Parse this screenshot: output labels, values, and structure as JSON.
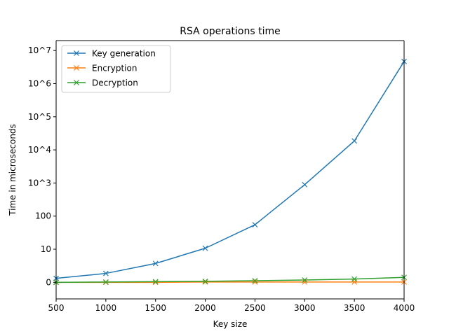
{
  "chart_data": {
    "type": "line",
    "title": "RSA operations time",
    "xlabel": "Key size",
    "ylabel": "Time in microseconds",
    "x": [
      500,
      1000,
      1500,
      2000,
      2500,
      3000,
      3500,
      4000
    ],
    "xlim": [
      500,
      4000
    ],
    "x_ticks": [
      500,
      1000,
      1500,
      2000,
      2500,
      3000,
      3500,
      4000
    ],
    "y_scale": "symlog",
    "ylim": [
      -0.5,
      7.3
    ],
    "y_ticks": [
      {
        "value": 0,
        "label": "0"
      },
      {
        "value": 1,
        "label": "10"
      },
      {
        "value": 2,
        "label": "100"
      },
      {
        "value": 3,
        "label": "10^3"
      },
      {
        "value": 4,
        "label": "10^4"
      },
      {
        "value": 5,
        "label": "10^5"
      },
      {
        "value": 6,
        "label": "10^6"
      },
      {
        "value": 7,
        "label": "10^7"
      }
    ],
    "legend_position": "top-left",
    "marker": "x",
    "series": [
      {
        "name": "Key generation",
        "color": "#1f77b4",
        "values": [
          0.12,
          0.27,
          0.57,
          1.03,
          1.74,
          2.95,
          4.27,
          6.67
        ]
      },
      {
        "name": "Encryption",
        "color": "#ff7f0e",
        "values": [
          0.0,
          0.0,
          0.0,
          0.01,
          0.01,
          0.01,
          0.01,
          0.01
        ]
      },
      {
        "name": "Decryption",
        "color": "#2ca02c",
        "values": [
          0.0,
          0.01,
          0.02,
          0.03,
          0.05,
          0.07,
          0.1,
          0.15
        ]
      }
    ]
  }
}
